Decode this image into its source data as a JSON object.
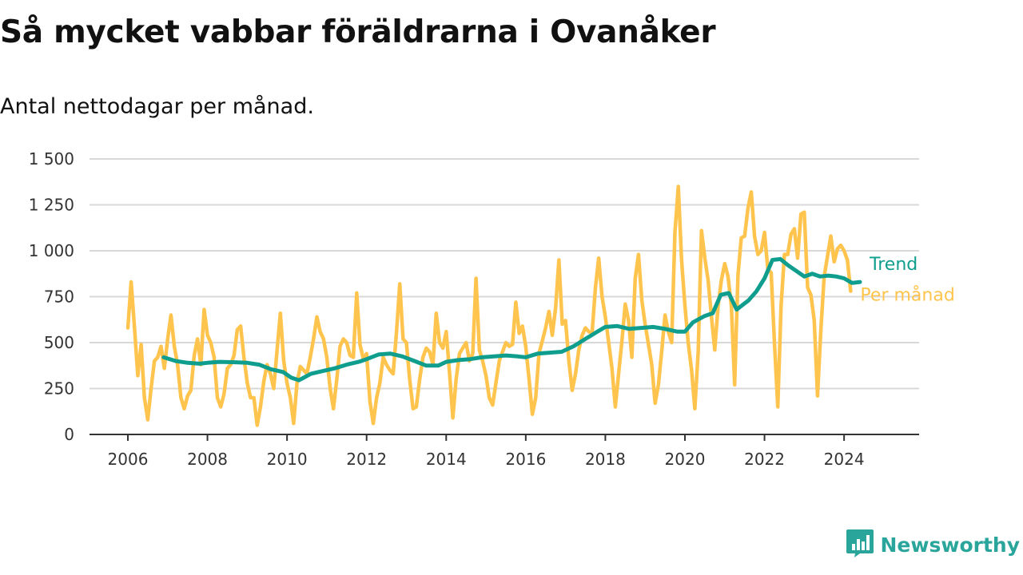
{
  "header": {
    "title": "Så mycket vabbar föräldrarna i Ovanåker",
    "subtitle": "Antal nettodagar per månad."
  },
  "brand": {
    "name": "Newsworthy",
    "icon": "bar-chart-logo-icon"
  },
  "colors": {
    "trend": "#0f9e8e",
    "monthly": "#ffc44d",
    "grid": "#d8d8d8",
    "axis": "#333333",
    "brand": "#2aa59b"
  },
  "chart_data": {
    "type": "line",
    "xlabel": "",
    "ylabel": "",
    "xlim": [
      2006,
      2025.2
    ],
    "ylim": [
      0,
      1500
    ],
    "x_ticks": [
      2006,
      2008,
      2010,
      2012,
      2014,
      2016,
      2018,
      2020,
      2022,
      2024
    ],
    "x_tick_labels": [
      "2006",
      "2008",
      "2010",
      "2012",
      "2014",
      "2016",
      "2018",
      "2020",
      "2022",
      "2024"
    ],
    "y_ticks": [
      0,
      250,
      500,
      750,
      1000,
      1250,
      1500
    ],
    "y_tick_labels": [
      "0",
      "250",
      "500",
      "750",
      "1 000",
      "1 250",
      "1 500"
    ],
    "grid": true,
    "series": [
      {
        "name": "Per månad",
        "color": "#ffc44d",
        "start": "2006-01",
        "values": [
          580,
          830,
          580,
          320,
          490,
          200,
          80,
          250,
          400,
          420,
          480,
          360,
          520,
          650,
          480,
          380,
          200,
          140,
          210,
          240,
          430,
          520,
          380,
          680,
          540,
          500,
          420,
          200,
          150,
          220,
          360,
          380,
          430,
          570,
          590,
          420,
          280,
          200,
          200,
          50,
          150,
          290,
          380,
          330,
          250,
          460,
          660,
          400,
          280,
          200,
          60,
          280,
          370,
          350,
          330,
          420,
          520,
          640,
          560,
          520,
          420,
          250,
          140,
          300,
          480,
          520,
          500,
          430,
          420,
          770,
          490,
          410,
          440,
          180,
          60,
          200,
          280,
          420,
          380,
          350,
          330,
          550,
          820,
          520,
          500,
          300,
          140,
          150,
          300,
          420,
          470,
          450,
          380,
          660,
          500,
          470,
          560,
          340,
          90,
          300,
          440,
          470,
          500,
          400,
          440,
          850,
          460,
          400,
          320,
          200,
          160,
          280,
          400,
          450,
          500,
          480,
          490,
          720,
          550,
          590,
          480,
          300,
          110,
          200,
          440,
          510,
          580,
          670,
          540,
          690,
          950,
          600,
          620,
          400,
          240,
          330,
          460,
          540,
          580,
          560,
          550,
          800,
          960,
          750,
          640,
          500,
          360,
          150,
          330,
          510,
          710,
          620,
          420,
          850,
          980,
          730,
          600,
          490,
          380,
          170,
          270,
          450,
          650,
          560,
          500,
          1100,
          1350,
          950,
          700,
          500,
          350,
          140,
          450,
          1110,
          960,
          840,
          640,
          460,
          700,
          840,
          930,
          860,
          700,
          270,
          870,
          1070,
          1080,
          1230,
          1320,
          1080,
          980,
          1000,
          1100,
          900,
          880,
          500,
          150,
          700,
          980,
          980,
          1090,
          1120,
          960,
          1200,
          1210,
          800,
          760,
          620,
          210,
          570,
          860,
          970,
          1080,
          940,
          1010,
          1030,
          1000,
          950,
          780
        ]
      },
      {
        "name": "Trend",
        "color": "#0f9e8e",
        "points": [
          [
            2006.9,
            420
          ],
          [
            2007.2,
            400
          ],
          [
            2007.5,
            390
          ],
          [
            2007.8,
            385
          ],
          [
            2008.0,
            390
          ],
          [
            2008.3,
            395
          ],
          [
            2008.7,
            393
          ],
          [
            2009.0,
            390
          ],
          [
            2009.3,
            380
          ],
          [
            2009.6,
            355
          ],
          [
            2009.9,
            340
          ],
          [
            2010.1,
            310
          ],
          [
            2010.3,
            295
          ],
          [
            2010.6,
            330
          ],
          [
            2010.9,
            345
          ],
          [
            2011.2,
            360
          ],
          [
            2011.5,
            380
          ],
          [
            2011.8,
            395
          ],
          [
            2012.0,
            410
          ],
          [
            2012.3,
            435
          ],
          [
            2012.6,
            440
          ],
          [
            2012.9,
            425
          ],
          [
            2013.2,
            400
          ],
          [
            2013.5,
            375
          ],
          [
            2013.8,
            375
          ],
          [
            2014.0,
            395
          ],
          [
            2014.3,
            405
          ],
          [
            2014.6,
            410
          ],
          [
            2014.9,
            420
          ],
          [
            2015.2,
            425
          ],
          [
            2015.5,
            430
          ],
          [
            2015.8,
            425
          ],
          [
            2016.0,
            420
          ],
          [
            2016.3,
            440
          ],
          [
            2016.6,
            445
          ],
          [
            2016.9,
            450
          ],
          [
            2017.2,
            480
          ],
          [
            2017.5,
            520
          ],
          [
            2017.8,
            560
          ],
          [
            2018.0,
            585
          ],
          [
            2018.3,
            590
          ],
          [
            2018.6,
            575
          ],
          [
            2018.9,
            580
          ],
          [
            2019.2,
            585
          ],
          [
            2019.5,
            575
          ],
          [
            2019.8,
            560
          ],
          [
            2020.0,
            560
          ],
          [
            2020.2,
            610
          ],
          [
            2020.5,
            645
          ],
          [
            2020.7,
            660
          ],
          [
            2020.9,
            760
          ],
          [
            2021.1,
            770
          ],
          [
            2021.3,
            680
          ],
          [
            2021.6,
            730
          ],
          [
            2021.8,
            780
          ],
          [
            2022.0,
            850
          ],
          [
            2022.2,
            950
          ],
          [
            2022.4,
            955
          ],
          [
            2022.6,
            920
          ],
          [
            2022.8,
            890
          ],
          [
            2023.0,
            860
          ],
          [
            2023.2,
            875
          ],
          [
            2023.4,
            860
          ],
          [
            2023.6,
            865
          ],
          [
            2023.8,
            860
          ],
          [
            2024.0,
            850
          ],
          [
            2024.2,
            825
          ],
          [
            2024.4,
            830
          ]
        ]
      }
    ]
  }
}
